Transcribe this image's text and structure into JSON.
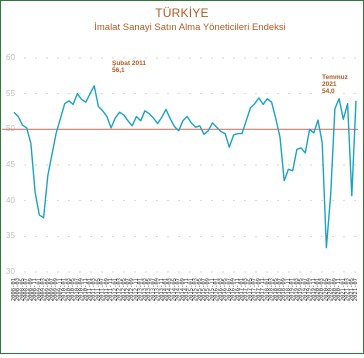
{
  "chart_data": {
    "type": "line",
    "title": "TÜRKİYE",
    "subtitle": "İmalat Sanayi Satın Alma Yöneticileri Endeksi",
    "annotations": [
      {
        "date": "Şubat 2011",
        "value": "56,1"
      },
      {
        "date": "Temmuz 2021",
        "value": "54,0"
      }
    ],
    "reference_line": 50,
    "ylim": [
      30,
      60
    ],
    "yticks": [
      "60",
      "55",
      "50",
      "45",
      "40",
      "35",
      "30"
    ],
    "x": [
      "2008-01",
      "2008-03",
      "2008-05",
      "2008-07",
      "2008-09",
      "2008-11",
      "2009-01",
      "2009-03",
      "2009-05",
      "2009-07",
      "2009-09",
      "2009-11",
      "2010-01",
      "2010-03",
      "2010-05",
      "2010-07",
      "2010-09",
      "2010-11",
      "2011-01",
      "2011-03",
      "2011-05",
      "2011-07",
      "2011-09",
      "2011-11",
      "2012-01",
      "2012-03",
      "2012-05",
      "2012-07",
      "2012-09",
      "2012-11",
      "2013-01",
      "2013-03",
      "2013-05",
      "2013-07",
      "2013-09",
      "2013-11",
      "2014-01",
      "2014-03",
      "2014-05",
      "2014-07",
      "2014-09",
      "2014-11",
      "2015-01",
      "2015-03",
      "2015-05",
      "2015-07",
      "2015-09",
      "2015-11",
      "2016-01",
      "2016-03",
      "2016-05",
      "2016-07",
      "2016-09",
      "2016-11",
      "2017-01",
      "2017-03",
      "2017-05",
      "2017-07",
      "2017-09",
      "2017-11",
      "2018-01",
      "2018-03",
      "2018-05",
      "2018-07",
      "2018-09",
      "2018-11",
      "2019-01",
      "2019-03",
      "2019-05",
      "2019-07",
      "2019-09",
      "2019-11",
      "2020-01",
      "2020-03",
      "2020-05",
      "2020-07",
      "2020-09",
      "2020-11",
      "2021-01",
      "2021-03",
      "2021-05",
      "2021-07"
    ],
    "series": [
      {
        "values": [
          52.4,
          51.8,
          50.6,
          50.2,
          48.0,
          41.2,
          38.0,
          37.6,
          43.5,
          46.5,
          49.5,
          51.5,
          53.6,
          54.0,
          53.5,
          55.0,
          54.2,
          53.8,
          55.0,
          56.1,
          53.2,
          52.6,
          51.8,
          50.2,
          51.6,
          52.4,
          52.0,
          51.2,
          50.5,
          51.8,
          51.2,
          52.6,
          52.2,
          51.6,
          50.8,
          51.7,
          52.8,
          51.5,
          50.4,
          49.8,
          51.2,
          51.8,
          50.9,
          50.3,
          50.5,
          49.3,
          49.8,
          50.9,
          50.3,
          49.7,
          49.4,
          47.5,
          49.2,
          49.4,
          49.4,
          51.2,
          53.0,
          53.6,
          54.4,
          53.5,
          54.3,
          53.8,
          51.5,
          48.9,
          42.8,
          44.4,
          44.2,
          47.2,
          47.4,
          46.7,
          50.0,
          49.5,
          51.3,
          48.1,
          33.4,
          40.9,
          52.9,
          54.3,
          51.4,
          53.6,
          40.7,
          54.0
        ],
        "color": "#1aa3c4"
      }
    ],
    "colors": {
      "line": "#1aa3c4",
      "reference": "#d77a6a",
      "text": "#b5591f",
      "frame": "#2f7a3a"
    }
  }
}
